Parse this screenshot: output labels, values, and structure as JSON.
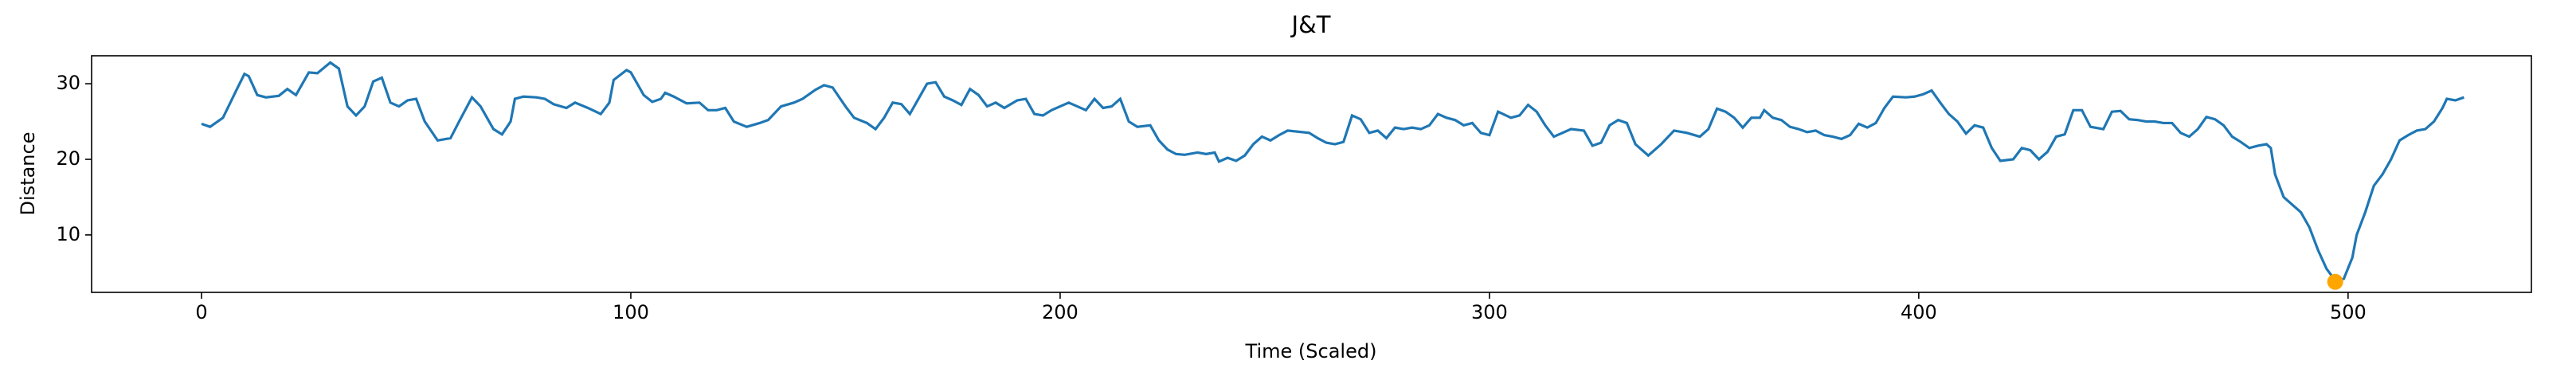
{
  "chart_data": {
    "type": "line",
    "title": "J&T",
    "xlabel": "Time (Scaled)",
    "ylabel": "Distance",
    "xlim": [
      -25.6,
      542.7
    ],
    "ylim": [
      2.4,
      33.7
    ],
    "xticks": [
      0,
      100,
      200,
      300,
      400,
      500
    ],
    "yticks": [
      10,
      20,
      30
    ],
    "series": [
      {
        "color": "#1f77b4",
        "x": [
          0,
          2,
          5,
          8,
          10,
          11,
          13,
          15,
          18,
          20,
          22,
          25,
          27,
          30,
          32,
          34,
          36,
          38,
          40,
          42,
          44,
          46,
          48,
          50,
          52,
          55,
          58,
          60,
          63,
          65,
          68,
          70,
          72,
          73,
          75,
          78,
          80,
          82,
          85,
          87,
          90,
          93,
          95,
          96,
          99,
          100,
          103,
          105,
          107,
          108,
          110,
          113,
          116,
          118,
          120,
          122,
          124,
          127,
          130,
          132,
          135,
          138,
          140,
          143,
          145,
          147,
          150,
          152,
          155,
          157,
          159,
          161,
          163,
          165,
          167,
          169,
          171,
          173,
          175,
          177,
          179,
          181,
          183,
          185,
          187,
          190,
          192,
          194,
          196,
          198,
          202,
          204,
          206,
          208,
          210,
          212,
          214,
          216,
          218,
          221,
          223,
          225,
          227,
          229,
          232,
          234,
          236,
          237,
          239,
          241,
          243,
          245,
          247,
          249,
          251,
          253,
          258,
          260,
          262,
          264,
          266,
          268,
          270,
          272,
          274,
          276,
          278,
          280,
          282,
          284,
          286,
          288,
          290,
          292,
          294,
          296,
          298,
          300,
          302,
          305,
          307,
          309,
          311,
          313,
          315,
          317,
          319,
          322,
          324,
          326,
          328,
          330,
          332,
          334,
          337,
          340,
          343,
          346,
          349,
          351,
          353,
          355,
          357,
          359,
          361,
          363,
          364,
          366,
          368,
          370,
          372,
          374,
          376,
          378,
          380,
          382,
          384,
          386,
          388,
          390,
          392,
          394,
          397,
          399,
          401,
          403,
          405,
          407,
          409,
          411,
          413,
          415,
          417,
          419,
          422,
          424,
          426,
          428,
          430,
          432,
          434,
          436,
          438,
          440,
          443,
          445,
          447,
          449,
          451,
          453,
          455,
          457,
          459,
          461,
          463,
          465,
          467,
          469,
          471,
          473,
          475,
          477,
          479,
          481,
          482,
          483,
          485,
          489,
          491,
          493,
          495,
          497,
          499,
          501,
          502,
          504,
          506,
          508,
          510,
          512,
          514,
          516,
          518,
          520,
          522,
          523,
          525,
          527
        ],
        "values": [
          24.7,
          24.3,
          25.5,
          29,
          31.3,
          31,
          28.5,
          28.2,
          28.4,
          29.3,
          28.5,
          31.5,
          31.4,
          32.8,
          32,
          27,
          25.8,
          27,
          30.3,
          30.8,
          27.5,
          27,
          27.8,
          28,
          25,
          22.5,
          22.8,
          25,
          28.2,
          27,
          24,
          23.3,
          25,
          28,
          28.3,
          28.2,
          28,
          27.3,
          26.8,
          27.5,
          26.8,
          26,
          27.5,
          30.5,
          31.8,
          31.5,
          28.5,
          27.6,
          28,
          28.8,
          28.3,
          27.4,
          27.5,
          26.5,
          26.5,
          26.8,
          25,
          24.3,
          24.8,
          25.2,
          27,
          27.5,
          28,
          29.2,
          29.8,
          29.5,
          27,
          25.5,
          24.8,
          24,
          25.5,
          27.5,
          27.3,
          26,
          28,
          30,
          30.2,
          28.3,
          27.8,
          27.2,
          29.3,
          28.5,
          27,
          27.5,
          26.8,
          27.8,
          28,
          26,
          25.8,
          26.5,
          27.5,
          27,
          26.5,
          28,
          26.8,
          27,
          28,
          25,
          24.3,
          24.5,
          22.5,
          21.3,
          20.7,
          20.6,
          20.9,
          20.7,
          20.9,
          19.7,
          20.2,
          19.8,
          20.5,
          22,
          23,
          22.5,
          23.2,
          23.8,
          23.5,
          22.8,
          22.2,
          22,
          22.3,
          25.8,
          25.3,
          23.5,
          23.8,
          22.8,
          24.2,
          24,
          24.2,
          24,
          24.5,
          26,
          25.5,
          25.2,
          24.5,
          24.8,
          23.5,
          23.2,
          26.3,
          25.5,
          25.8,
          27.2,
          26.3,
          24.5,
          23,
          23.5,
          24,
          23.8,
          21.8,
          22.2,
          24.5,
          25.2,
          24.8,
          22,
          20.5,
          22,
          23.8,
          23.5,
          23,
          24,
          26.7,
          26.3,
          25.5,
          24.2,
          25.5,
          25.5,
          26.5,
          25.5,
          25.2,
          24.3,
          24,
          23.6,
          23.8,
          23.2,
          23,
          22.7,
          23.2,
          24.7,
          24.2,
          24.8,
          26.8,
          28.3,
          28.2,
          28.3,
          28.6,
          29.1,
          27.5,
          26,
          25,
          23.4,
          24.5,
          24.2,
          21.5,
          19.8,
          20,
          21.5,
          21.2,
          20,
          21,
          23,
          23.3,
          26.5,
          26.5,
          24.3,
          24,
          26.3,
          26.4,
          25.3,
          25.2,
          25,
          25,
          24.8,
          24.8,
          23.5,
          23,
          24,
          25.6,
          25.3,
          24.5,
          23,
          22.3,
          21.5,
          21.8,
          22,
          21.5,
          18,
          15,
          13,
          11,
          8,
          5.5,
          4,
          4.2,
          7,
          10,
          13,
          16.5,
          18,
          20,
          22.5,
          23.2,
          23.8,
          24,
          25,
          26.8,
          28,
          27.8,
          28.2
        ]
      },
      {
        "type": "scatter",
        "color": "#ffa500",
        "x": [
          497
        ],
        "values": [
          3.8
        ]
      }
    ]
  }
}
